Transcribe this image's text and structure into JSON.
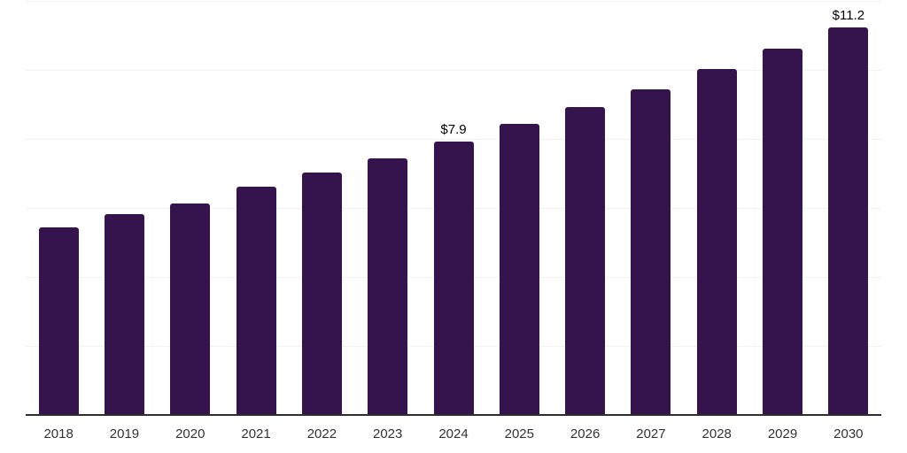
{
  "chart_data": {
    "type": "bar",
    "title": "",
    "xlabel": "",
    "ylabel": "",
    "categories": [
      "2018",
      "2019",
      "2020",
      "2021",
      "2022",
      "2023",
      "2024",
      "2025",
      "2026",
      "2027",
      "2028",
      "2029",
      "2030"
    ],
    "values": [
      5.4,
      5.8,
      6.1,
      6.6,
      7.0,
      7.4,
      7.9,
      8.4,
      8.9,
      9.4,
      10.0,
      10.6,
      11.2
    ],
    "data_labels": {
      "2024": "$7.9",
      "2030": "$11.2"
    },
    "ylim": [
      0,
      12
    ],
    "gridline_step": 2,
    "grid_on": true,
    "legend_position": "none",
    "colors": {
      "bar": "#35134d",
      "grid": "#f2f2f2",
      "axis": "#2e2e2e",
      "tick_label": "#333333",
      "value_label": "#000000",
      "background": "#ffffff"
    }
  }
}
